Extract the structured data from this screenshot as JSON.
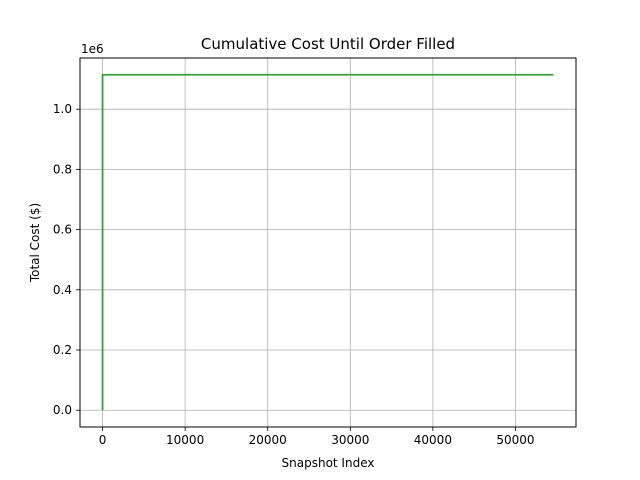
{
  "chart_data": {
    "type": "line",
    "title": "Cumulative Cost Until Order Filled",
    "xlabel": "Snapshot Index",
    "ylabel": "Total Cost ($)",
    "y_offset_label": "1e6",
    "xlim": [
      -2730,
      57330
    ],
    "ylim": [
      -0.0557,
      1.17
    ],
    "xticks": [
      0,
      10000,
      20000,
      30000,
      40000,
      50000
    ],
    "xtick_labels": [
      "0",
      "10000",
      "20000",
      "30000",
      "40000",
      "50000"
    ],
    "yticks": [
      0.0,
      0.2,
      0.4,
      0.6,
      0.8,
      1.0
    ],
    "ytick_labels": [
      "0.0",
      "0.2",
      "0.4",
      "0.6",
      "0.8",
      "1.0"
    ],
    "grid": true,
    "series": [
      {
        "color": "#3a9e3a",
        "x": [
          0,
          0,
          54600
        ],
        "y": [
          0.0,
          1.1143,
          1.1143
        ]
      }
    ]
  }
}
